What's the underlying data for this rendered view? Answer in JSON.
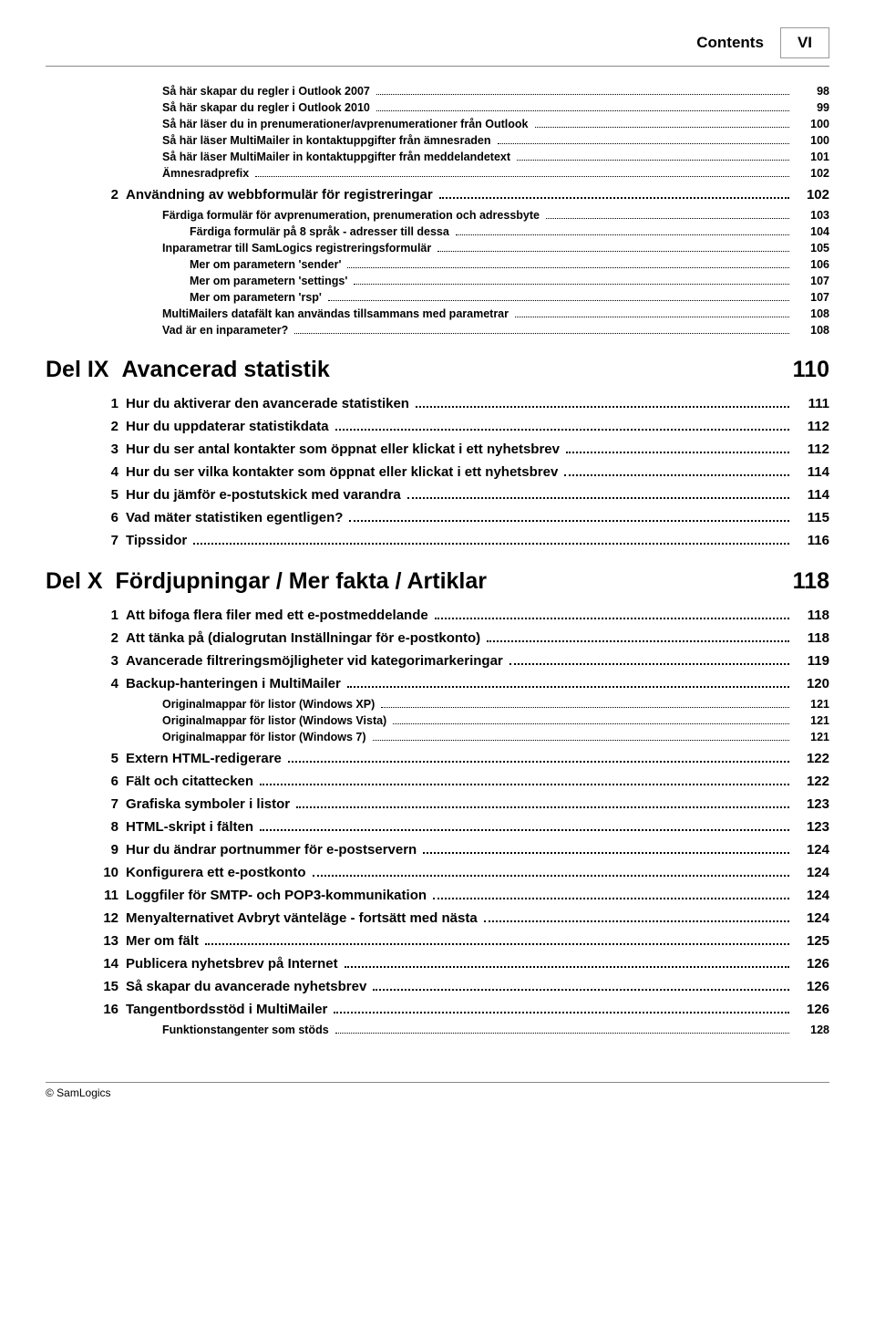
{
  "header": {
    "title": "Contents",
    "page_roman": "VI"
  },
  "toc": [
    {
      "level": "sub",
      "label": "Så här skapar du regler i Outlook 2007",
      "page": "98"
    },
    {
      "level": "sub",
      "label": "Så här skapar du regler i Outlook 2010",
      "page": "99"
    },
    {
      "level": "sub",
      "label": "Så här läser du in prenumerationer/avprenumerationer från Outlook",
      "page": "100"
    },
    {
      "level": "sub",
      "label": "Så här läser MultiMailer in kontaktuppgifter från ämnesraden",
      "page": "100"
    },
    {
      "level": "sub",
      "label": "Så här läser MultiMailer in kontaktuppgifter från meddelandetext",
      "page": "101"
    },
    {
      "level": "sub",
      "label": "Ämnesradprefix",
      "page": "102"
    },
    {
      "level": "sec",
      "num": "2",
      "label": "Användning av webbformulär för registreringar",
      "page": "102"
    },
    {
      "level": "sub",
      "label": "Färdiga formulär för avprenumeration, prenumeration och adressbyte",
      "page": "103"
    },
    {
      "level": "sub2",
      "label": "Färdiga formulär på 8 språk - adresser till dessa",
      "page": "104"
    },
    {
      "level": "sub",
      "label": "Inparametrar till SamLogics registreringsformulär",
      "page": "105"
    },
    {
      "level": "sub2",
      "label": "Mer om parametern 'sender'",
      "page": "106"
    },
    {
      "level": "sub2",
      "label": "Mer om parametern 'settings'",
      "page": "107"
    },
    {
      "level": "sub2",
      "label": "Mer om parametern 'rsp'",
      "page": "107"
    },
    {
      "level": "sub",
      "label": "MultiMailers datafält kan användas tillsammans med parametrar",
      "page": "108"
    },
    {
      "level": "sub",
      "label": "Vad är en inparameter?",
      "page": "108"
    },
    {
      "level": "part",
      "part": "Del IX",
      "title": "Avancerad statistik",
      "page": "110"
    },
    {
      "level": "sec",
      "num": "1",
      "label": "Hur du aktiverar den avancerade statistiken",
      "page": "111"
    },
    {
      "level": "sec",
      "num": "2",
      "label": "Hur du uppdaterar statistikdata",
      "page": "112"
    },
    {
      "level": "sec",
      "num": "3",
      "label": "Hur du ser antal kontakter som öppnat eller klickat i ett nyhetsbrev",
      "page": "112"
    },
    {
      "level": "sec",
      "num": "4",
      "label": "Hur du ser vilka kontakter som öppnat eller klickat i ett nyhetsbrev",
      "page": "114"
    },
    {
      "level": "sec",
      "num": "5",
      "label": "Hur du jämför e-postutskick med varandra",
      "page": "114"
    },
    {
      "level": "sec",
      "num": "6",
      "label": "Vad mäter statistiken egentligen?",
      "page": "115"
    },
    {
      "level": "sec",
      "num": "7",
      "label": "Tipssidor",
      "page": "116"
    },
    {
      "level": "part",
      "part": "Del X",
      "title": "Fördjupningar / Mer fakta / Artiklar",
      "page": "118"
    },
    {
      "level": "sec",
      "num": "1",
      "label": "Att bifoga flera filer med ett e-postmeddelande",
      "page": "118"
    },
    {
      "level": "sec",
      "num": "2",
      "label": "Att tänka på (dialogrutan Inställningar för e-postkonto)",
      "page": "118"
    },
    {
      "level": "sec",
      "num": "3",
      "label": "Avancerade filtreringsmöjligheter vid kategorimarkeringar",
      "page": "119"
    },
    {
      "level": "sec",
      "num": "4",
      "label": "Backup-hanteringen i MultiMailer",
      "page": "120"
    },
    {
      "level": "sub",
      "label": "Originalmappar för listor (Windows XP)",
      "page": "121"
    },
    {
      "level": "sub",
      "label": "Originalmappar för listor (Windows Vista)",
      "page": "121"
    },
    {
      "level": "sub",
      "label": "Originalmappar för listor (Windows 7)",
      "page": "121"
    },
    {
      "level": "sec",
      "num": "5",
      "label": "Extern HTML-redigerare",
      "page": "122"
    },
    {
      "level": "sec",
      "num": "6",
      "label": "Fält och citattecken",
      "page": "122"
    },
    {
      "level": "sec",
      "num": "7",
      "label": "Grafiska symboler i listor",
      "page": "123"
    },
    {
      "level": "sec",
      "num": "8",
      "label": "HTML-skript i fälten",
      "page": "123"
    },
    {
      "level": "sec",
      "num": "9",
      "label": "Hur du ändrar portnummer för e-postservern",
      "page": "124"
    },
    {
      "level": "sec",
      "num": "10",
      "label": "Konfigurera ett e-postkonto",
      "page": "124"
    },
    {
      "level": "sec",
      "num": "11",
      "label": "Loggfiler för SMTP- och POP3-kommunikation",
      "page": "124"
    },
    {
      "level": "sec",
      "num": "12",
      "label": "Menyalternativet Avbryt vänteläge - fortsätt med nästa",
      "page": "124"
    },
    {
      "level": "sec",
      "num": "13",
      "label": "Mer om fält",
      "page": "125"
    },
    {
      "level": "sec",
      "num": "14",
      "label": "Publicera nyhetsbrev på Internet",
      "page": "126"
    },
    {
      "level": "sec",
      "num": "15",
      "label": "Så skapar du avancerade nyhetsbrev",
      "page": "126"
    },
    {
      "level": "sec",
      "num": "16",
      "label": "Tangentbordsstöd i MultiMailer",
      "page": "126"
    },
    {
      "level": "sub",
      "label": "Funktionstangenter som stöds",
      "page": "128"
    }
  ],
  "footer": "© SamLogics"
}
